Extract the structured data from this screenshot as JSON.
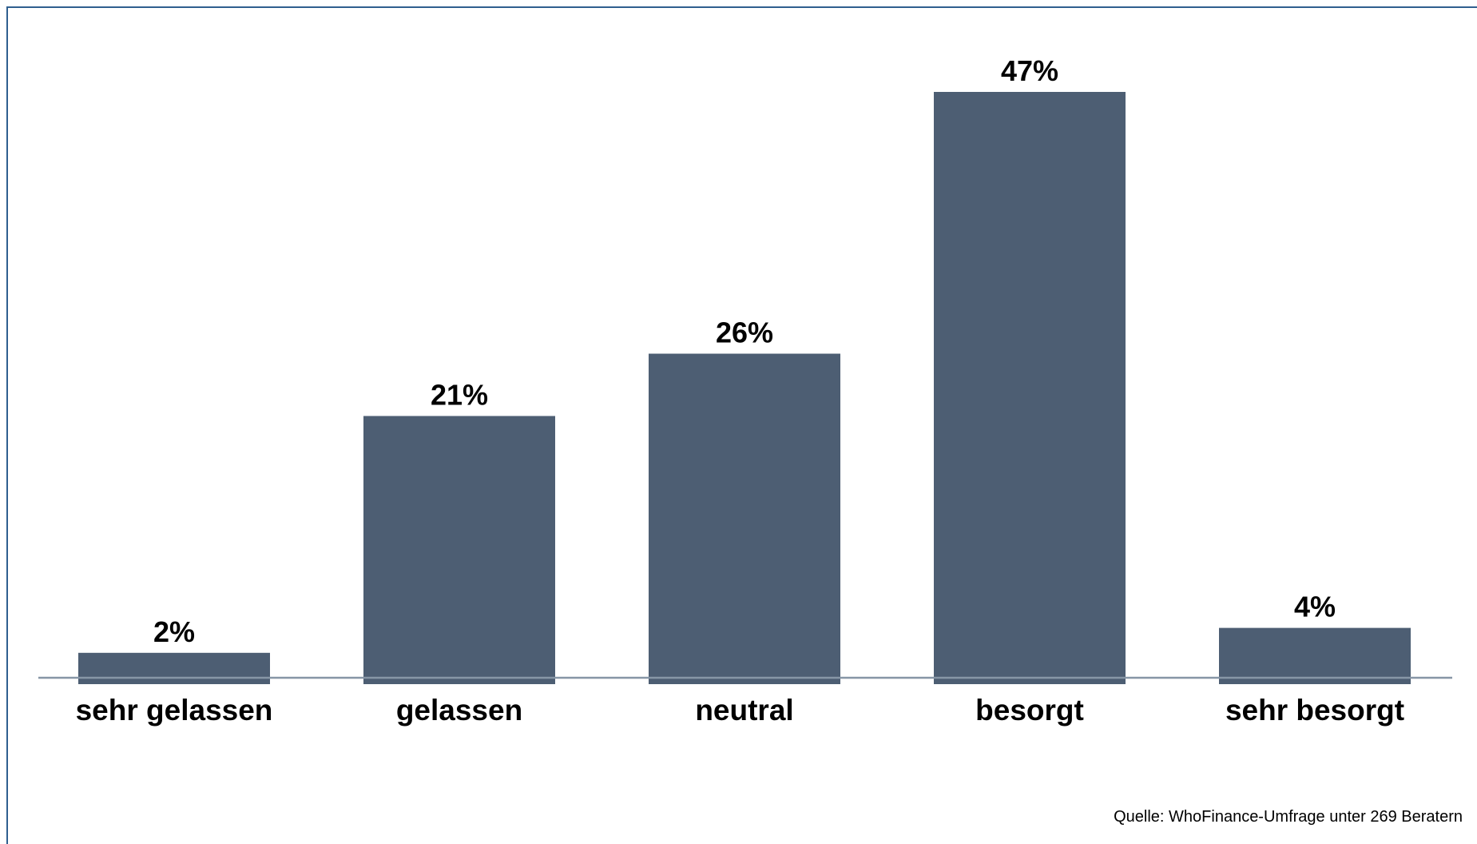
{
  "chart_data": {
    "type": "bar",
    "categories": [
      "sehr gelassen",
      "gelassen",
      "neutral",
      "besorgt",
      "sehr besorgt"
    ],
    "values": [
      2,
      21,
      26,
      47,
      4
    ],
    "value_labels": [
      "2%",
      "21%",
      "26%",
      "47%",
      "4%"
    ],
    "ylim": [
      0,
      47
    ],
    "grid": false,
    "legend": "none",
    "bar_color": "#4d5e73",
    "axis_color": "#8796a6"
  },
  "source": "Quelle: WhoFinance-Umfrage unter 269 Beratern"
}
